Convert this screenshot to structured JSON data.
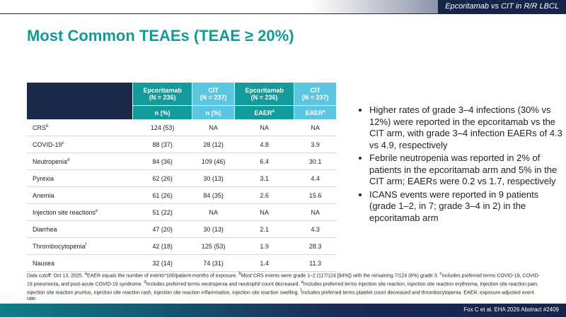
{
  "header": {
    "tag": "Epcoritamab vs CIT in R/R LBCL",
    "title": "Most Common TEAEs (TEAE ≥ 20%)"
  },
  "table": {
    "columns": [
      {
        "name": "Epcoritamab",
        "n": "(N = 236)"
      },
      {
        "name": "CIT",
        "n": "(N = 237)"
      },
      {
        "name": "Epcoritamab",
        "n": "(N = 236)"
      },
      {
        "name": "CIT",
        "n": "(N = 237)"
      }
    ],
    "units": [
      {
        "text": "n (%)"
      },
      {
        "text": "n (%)"
      },
      {
        "text": "EAER",
        "sup": "a"
      },
      {
        "text": "EAER",
        "sup": "a"
      }
    ],
    "rows": [
      {
        "label": "CRS",
        "sup": "b",
        "cells": [
          "124 (53)",
          "NA",
          "NA",
          "NA"
        ]
      },
      {
        "label": "COVID-19",
        "sup": "c",
        "cells": [
          "88 (37)",
          "28 (12)",
          "4.8",
          "3.9"
        ]
      },
      {
        "label": "Neutropenia",
        "sup": "d",
        "cells": [
          "84 (36)",
          "109 (46)",
          "6.4",
          "30.1"
        ]
      },
      {
        "label": "Pyrexia",
        "cells": [
          "62 (26)",
          "30 (13)",
          "3.1",
          "4.4"
        ]
      },
      {
        "label": "Anemia",
        "cells": [
          "61 (26)",
          "84 (35)",
          "2.6",
          "15.6"
        ]
      },
      {
        "label": "Injection site reactions",
        "sup": "e",
        "cells": [
          "51 (22)",
          "NA",
          "NA",
          "NA"
        ]
      },
      {
        "label": "Diarrhea",
        "cells": [
          "47 (20)",
          "30 (13)",
          "2.1",
          "4.3"
        ]
      },
      {
        "label": "Thrombocytopenia",
        "sup": "f",
        "cells": [
          "42 (18)",
          "125 (53)",
          "1.9",
          "28.3"
        ]
      },
      {
        "label": "Nausea",
        "cells": [
          "32 (14)",
          "74 (31)",
          "1.4",
          "11.3"
        ]
      }
    ]
  },
  "bullets": [
    "Higher rates of grade 3–4 infections (30% vs 12%) were reported in the epcoritamab vs the CIT arm, with grade 3–4 infection EAERs of 4.3 vs 4.9, respectively",
    "Febrile neutropenia was reported in 2% of patients in the epcoritamab arm and 5% in the CIT arm; EAERs were 0.2 vs 1.7, respectively",
    "ICANS events were reported in 9 patients (grade 1–2, in 7; grade 3–4 in 2) in the epcoritamab arm"
  ],
  "footnotes": {
    "lead": "Data cutoff: Oct 13, 2025.",
    "items": [
      {
        "sup": "a",
        "text": "EAER equals the number of events*100/patient-months of exposure."
      },
      {
        "sup": "b",
        "text": "Most CRS events were grade 1–2 (117/124 [94%]) with the remaining 7/124 (6%) grade 3."
      },
      {
        "sup": "c",
        "text": "Includes preferred terms COVID-19, COVID-19 pneumonia, and post-acute COVID-19 syndrome."
      },
      {
        "sup": "d",
        "text": "Includes preferred terms neutropenia and neutrophil count decreased."
      },
      {
        "sup": "e",
        "text": "Includes preferred terms injection site reaction, injection site reaction erythrema, injection site reaction pain, injection site reaction pruritus, injection site reaction rash, injection site reaction inflammation, injection site reaction swelling."
      },
      {
        "sup": "f",
        "text": "Includes preferred terms platelet count decreased and thrombocytopenia. EAER, exposure-adjusted event rate."
      }
    ]
  },
  "citation": "Fox C et al. EHA 2026 Abstract #2409"
}
